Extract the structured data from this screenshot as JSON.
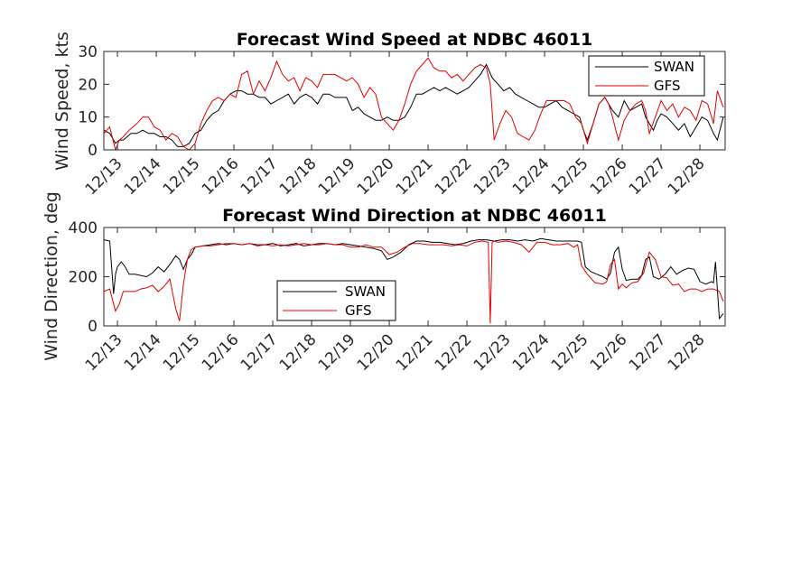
{
  "chart_data": [
    {
      "type": "line",
      "title": "Forecast Wind Speed at NDBC 46011",
      "xlabel": "",
      "ylabel": "Wind Speed, kts",
      "xlim": [
        12.65,
        28.65
      ],
      "ylim": [
        0,
        30
      ],
      "yticks": [
        0,
        10,
        20,
        30
      ],
      "xtick_values": [
        13,
        14,
        15,
        16,
        17,
        18,
        19,
        20,
        21,
        22,
        23,
        24,
        25,
        26,
        27,
        28
      ],
      "xtick_labels": [
        "12/13",
        "12/14",
        "12/15",
        "12/16",
        "12/17",
        "12/18",
        "12/19",
        "12/20",
        "12/21",
        "12/22",
        "12/23",
        "12/24",
        "12/25",
        "12/26",
        "12/27",
        "12/28"
      ],
      "legend_position": "top-right",
      "series": [
        {
          "name": "SWAN",
          "color": "#000000",
          "x": [
            12.65,
            12.8,
            12.95,
            13.05,
            13.15,
            13.25,
            13.35,
            13.5,
            13.65,
            13.8,
            13.95,
            14.1,
            14.25,
            14.4,
            14.55,
            14.7,
            14.85,
            15.0,
            15.15,
            15.3,
            15.45,
            15.6,
            15.75,
            15.9,
            16.05,
            16.2,
            16.35,
            16.5,
            16.65,
            16.8,
            16.95,
            17.1,
            17.25,
            17.4,
            17.55,
            17.7,
            17.85,
            18.0,
            18.15,
            18.3,
            18.45,
            18.6,
            18.75,
            18.9,
            19.05,
            19.2,
            19.35,
            19.5,
            19.65,
            19.8,
            19.95,
            20.1,
            20.25,
            20.4,
            20.55,
            20.7,
            20.85,
            21.0,
            21.15,
            21.3,
            21.45,
            21.6,
            21.75,
            21.9,
            22.05,
            22.2,
            22.35,
            22.5,
            22.65,
            22.8,
            22.95,
            23.1,
            23.25,
            23.4,
            23.55,
            23.7,
            23.85,
            24.0,
            24.15,
            24.3,
            24.45,
            24.6,
            24.75,
            24.9,
            25.0,
            25.1,
            25.25,
            25.4,
            25.55,
            25.65,
            25.75,
            25.9,
            26.05,
            26.2,
            26.35,
            26.5,
            26.6,
            26.7,
            26.8,
            26.9,
            27.0,
            27.15,
            27.3,
            27.45,
            27.6,
            27.75,
            27.9,
            28.05,
            28.2,
            28.35,
            28.45,
            28.6
          ],
          "y": [
            6,
            5,
            2,
            3,
            3,
            4,
            5,
            5,
            6,
            5,
            5,
            4,
            4,
            3,
            1,
            1,
            2,
            5,
            6,
            9,
            11,
            12,
            15,
            17,
            18,
            18,
            17,
            17,
            16,
            16,
            14,
            15,
            16,
            17,
            14,
            16,
            17,
            16,
            14,
            17,
            17,
            16,
            16,
            16,
            12,
            13,
            11,
            10,
            9,
            9,
            10,
            9,
            9,
            10,
            13,
            17,
            17,
            18,
            19,
            18,
            19,
            18,
            17,
            18,
            19,
            21,
            23,
            26,
            22,
            20,
            18,
            19,
            17,
            16,
            15,
            14,
            13,
            13,
            14,
            15,
            13,
            12,
            11,
            10,
            6,
            3,
            8,
            14,
            16,
            14,
            12,
            10,
            15,
            12,
            13,
            14,
            10,
            8,
            6,
            9,
            11,
            10,
            8,
            6,
            8,
            4,
            7,
            10,
            9,
            5,
            3,
            10
          ],
          "points": [
            [
              12.65,
              6
            ],
            [
              12.8,
              5
            ],
            [
              12.95,
              2
            ]
          ]
        },
        {
          "name": "GFS",
          "color": "#e00000",
          "x": [
            12.65,
            12.8,
            12.95,
            13.05,
            13.15,
            13.3,
            13.5,
            13.65,
            13.8,
            13.95,
            14.1,
            14.25,
            14.4,
            14.55,
            14.7,
            14.85,
            15.0,
            15.15,
            15.3,
            15.45,
            15.6,
            15.75,
            15.9,
            16.05,
            16.2,
            16.35,
            16.5,
            16.65,
            16.8,
            16.95,
            17.1,
            17.25,
            17.4,
            17.55,
            17.7,
            17.85,
            18.0,
            18.15,
            18.3,
            18.45,
            18.6,
            18.75,
            18.9,
            19.05,
            19.2,
            19.35,
            19.5,
            19.65,
            19.8,
            19.95,
            20.1,
            20.25,
            20.4,
            20.55,
            20.7,
            20.85,
            21.0,
            21.15,
            21.3,
            21.45,
            21.6,
            21.75,
            21.9,
            22.05,
            22.2,
            22.35,
            22.5,
            22.6,
            22.7,
            22.85,
            23.0,
            23.15,
            23.3,
            23.45,
            23.6,
            23.75,
            23.9,
            24.05,
            24.2,
            24.35,
            24.5,
            24.65,
            24.8,
            24.95,
            25.1,
            25.25,
            25.4,
            25.55,
            25.65,
            25.75,
            25.9,
            26.05,
            26.2,
            26.35,
            26.5,
            26.6,
            26.7,
            26.85,
            27.0,
            27.15,
            27.3,
            27.45,
            27.6,
            27.75,
            27.9,
            28.05,
            28.2,
            28.35,
            28.45,
            28.6
          ],
          "y": [
            5,
            7,
            0,
            3,
            4,
            6,
            8,
            10,
            10,
            7,
            6,
            3,
            5,
            4,
            1,
            0,
            2,
            8,
            12,
            15,
            16,
            15,
            17,
            16,
            23,
            24,
            17,
            21,
            18,
            22,
            27,
            23,
            21,
            22,
            18,
            22,
            21,
            19,
            23,
            23,
            23,
            22,
            21,
            22,
            20,
            16,
            19,
            17,
            10,
            8,
            6,
            9,
            14,
            20,
            24,
            26,
            28,
            25,
            24,
            24,
            22,
            23,
            21,
            23,
            25,
            26,
            25,
            20,
            3,
            8,
            12,
            10,
            5,
            4,
            3,
            6,
            11,
            15,
            15,
            15,
            15,
            14,
            10,
            8,
            2,
            8,
            14,
            16,
            14,
            10,
            3,
            9,
            12,
            14,
            15,
            12,
            5,
            10,
            15,
            12,
            14,
            10,
            13,
            12,
            9,
            15,
            14,
            8,
            18,
            13
          ]
        }
      ]
    },
    {
      "type": "line",
      "title": "Forecast Wind Direction at NDBC 46011",
      "xlabel": "",
      "ylabel": "Wind Direction, deg",
      "xlim": [
        12.65,
        28.65
      ],
      "ylim": [
        0,
        400
      ],
      "yticks": [
        0,
        200,
        400
      ],
      "xtick_values": [
        13,
        14,
        15,
        16,
        17,
        18,
        19,
        20,
        21,
        22,
        23,
        24,
        25,
        26,
        27,
        28
      ],
      "xtick_labels": [
        "12/13",
        "12/14",
        "12/15",
        "12/16",
        "12/17",
        "12/18",
        "12/19",
        "12/20",
        "12/21",
        "12/22",
        "12/23",
        "12/24",
        "12/25",
        "12/26",
        "12/27",
        "12/28"
      ],
      "legend_position": "bottom-left",
      "series": [
        {
          "name": "SWAN",
          "color": "#000000",
          "x": [
            12.65,
            12.8,
            12.9,
            12.95,
            13.0,
            13.1,
            13.2,
            13.3,
            13.45,
            13.6,
            13.75,
            13.9,
            14.05,
            14.2,
            14.35,
            14.5,
            14.6,
            14.7,
            14.8,
            14.9,
            15.0,
            15.2,
            15.4,
            15.6,
            15.8,
            16.0,
            16.2,
            16.4,
            16.6,
            16.8,
            17.0,
            17.2,
            17.4,
            17.6,
            17.8,
            18.0,
            18.2,
            18.4,
            18.6,
            18.8,
            19.0,
            19.2,
            19.4,
            19.6,
            19.8,
            19.95,
            20.1,
            20.3,
            20.5,
            20.7,
            20.9,
            21.1,
            21.3,
            21.5,
            21.7,
            21.9,
            22.1,
            22.3,
            22.5,
            22.7,
            22.9,
            23.1,
            23.3,
            23.5,
            23.7,
            23.9,
            24.1,
            24.3,
            24.5,
            24.7,
            24.85,
            24.95,
            25.05,
            25.2,
            25.35,
            25.5,
            25.6,
            25.7,
            25.8,
            25.9,
            26.0,
            26.1,
            26.25,
            26.4,
            26.5,
            26.6,
            26.7,
            26.8,
            26.95,
            27.1,
            27.25,
            27.4,
            27.55,
            27.7,
            27.85,
            28.0,
            28.15,
            28.3,
            28.35,
            28.4,
            28.5,
            28.6
          ],
          "y": [
            350,
            345,
            130,
            210,
            240,
            260,
            240,
            210,
            210,
            205,
            200,
            215,
            240,
            220,
            250,
            285,
            270,
            230,
            270,
            290,
            320,
            325,
            330,
            335,
            330,
            335,
            330,
            335,
            330,
            330,
            335,
            325,
            330,
            335,
            325,
            330,
            335,
            335,
            330,
            335,
            330,
            325,
            320,
            315,
            305,
            270,
            280,
            300,
            330,
            345,
            345,
            340,
            340,
            335,
            330,
            335,
            345,
            350,
            350,
            345,
            350,
            350,
            345,
            350,
            345,
            355,
            350,
            345,
            345,
            345,
            345,
            340,
            240,
            220,
            210,
            200,
            190,
            215,
            300,
            320,
            230,
            185,
            190,
            190,
            205,
            270,
            280,
            200,
            190,
            210,
            240,
            210,
            225,
            235,
            230,
            180,
            170,
            180,
            175,
            260,
            30,
            50
          ]
        },
        {
          "name": "GFS",
          "color": "#e00000",
          "x": [
            12.65,
            12.8,
            12.95,
            13.05,
            13.15,
            13.3,
            13.45,
            13.6,
            13.75,
            13.9,
            14.05,
            14.2,
            14.35,
            14.5,
            14.6,
            14.7,
            14.8,
            14.9,
            15.0,
            15.2,
            15.4,
            15.6,
            15.8,
            16.0,
            16.2,
            16.4,
            16.6,
            16.8,
            17.0,
            17.2,
            17.4,
            17.6,
            17.8,
            18.0,
            18.2,
            18.4,
            18.6,
            18.8,
            19.0,
            19.2,
            19.4,
            19.6,
            19.8,
            20.0,
            20.2,
            20.4,
            20.6,
            20.8,
            21.0,
            21.2,
            21.4,
            21.6,
            21.8,
            22.0,
            22.2,
            22.4,
            22.55,
            22.6,
            22.65,
            22.7,
            22.8,
            23.0,
            23.2,
            23.4,
            23.6,
            23.8,
            24.0,
            24.2,
            24.4,
            24.6,
            24.75,
            24.85,
            24.95,
            25.1,
            25.3,
            25.5,
            25.6,
            25.7,
            25.8,
            25.9,
            26.0,
            26.1,
            26.25,
            26.4,
            26.55,
            26.7,
            26.85,
            27.0,
            27.15,
            27.3,
            27.45,
            27.6,
            27.75,
            27.9,
            28.05,
            28.2,
            28.35,
            28.5,
            28.6
          ],
          "y": [
            140,
            150,
            60,
            90,
            140,
            140,
            140,
            150,
            155,
            165,
            140,
            160,
            190,
            70,
            20,
            170,
            270,
            310,
            320,
            325,
            325,
            330,
            335,
            335,
            330,
            335,
            325,
            330,
            325,
            330,
            325,
            330,
            335,
            330,
            330,
            335,
            330,
            330,
            320,
            320,
            330,
            320,
            320,
            290,
            300,
            320,
            335,
            335,
            330,
            330,
            330,
            325,
            330,
            325,
            340,
            345,
            340,
            10,
            340,
            345,
            340,
            345,
            340,
            330,
            300,
            340,
            340,
            330,
            330,
            335,
            320,
            330,
            245,
            210,
            175,
            170,
            180,
            250,
            270,
            150,
            170,
            155,
            175,
            180,
            215,
            300,
            270,
            200,
            195,
            165,
            170,
            140,
            150,
            150,
            140,
            150,
            150,
            140,
            100
          ]
        }
      ]
    }
  ]
}
